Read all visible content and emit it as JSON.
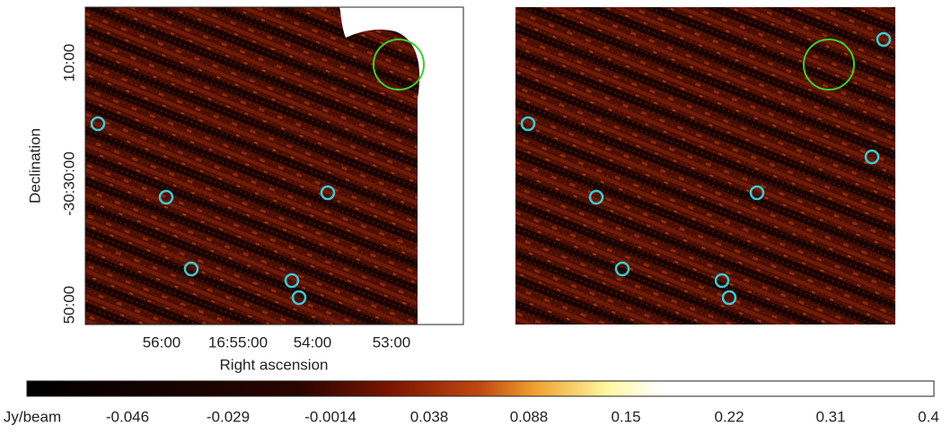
{
  "figure": {
    "ylabel": "Declination",
    "xlabel": "Right ascension",
    "yticks": [
      "10:00",
      "-30:30:00",
      "50:00"
    ],
    "xticks": [
      "56:00",
      "16:55:00",
      "54:00",
      "53:00"
    ],
    "colorbar": {
      "unit": "Jy/beam",
      "ticks": [
        "-0.046",
        "-0.029",
        "-0.0014",
        "0.038",
        "0.088",
        "0.15",
        "0.22",
        "0.31",
        "0.4"
      ]
    }
  }
}
